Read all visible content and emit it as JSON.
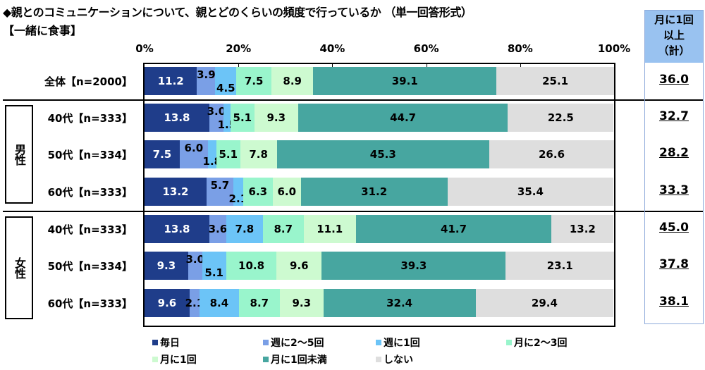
{
  "chart_data": {
    "type": "bar",
    "orientation": "horizontal",
    "stacked": true,
    "title": "◆親とのコミュニケーションについて、親とどのくらいの頻度で行っているか （単一回答形式）",
    "subtitle": "【一緒に食事】",
    "xlim": [
      0,
      100
    ],
    "x_ticks": [
      "0%",
      "20%",
      "40%",
      "60%",
      "80%",
      "100%"
    ],
    "categories": [
      "全体【n=2000】",
      "40代【n=333】",
      "50代【n=334】",
      "60代【n=333】",
      "40代【n=333】",
      "50代【n=334】",
      "60代【n=333】"
    ],
    "groups": [
      {
        "label": "",
        "rows": [
          0
        ]
      },
      {
        "label": "男性",
        "rows": [
          1,
          2,
          3
        ]
      },
      {
        "label": "女性",
        "rows": [
          4,
          5,
          6
        ]
      }
    ],
    "series": [
      {
        "name": "毎日",
        "color": "#1f3d8a",
        "values": [
          11.2,
          13.8,
          7.5,
          13.2,
          13.8,
          9.3,
          9.6
        ]
      },
      {
        "name": "週に2～5回",
        "color": "#7a9fe6",
        "values": [
          3.9,
          3.0,
          6.0,
          5.7,
          3.6,
          3.0,
          2.1
        ]
      },
      {
        "name": "週に1回",
        "color": "#6cc4f7",
        "values": [
          4.5,
          1.5,
          1.8,
          2.1,
          7.8,
          5.1,
          8.4
        ]
      },
      {
        "name": "月に2～3回",
        "color": "#99f5cc",
        "values": [
          7.5,
          5.1,
          5.1,
          6.3,
          8.7,
          10.8,
          8.7
        ]
      },
      {
        "name": "月に1回",
        "color": "#cdfad0",
        "values": [
          8.9,
          9.3,
          7.8,
          6.0,
          11.1,
          9.6,
          9.3
        ]
      },
      {
        "name": "月に1回未満",
        "color": "#47a6a0",
        "values": [
          39.1,
          44.7,
          45.3,
          31.2,
          41.7,
          39.3,
          32.4
        ]
      },
      {
        "name": "しない",
        "color": "#dedede",
        "values": [
          25.1,
          22.5,
          26.6,
          35.4,
          13.2,
          23.1,
          29.4
        ]
      }
    ],
    "label_offsets": [
      [
        null,
        "up",
        "down",
        null,
        null,
        null,
        null
      ],
      [
        null,
        "up",
        "down",
        null,
        null,
        null,
        null
      ],
      [
        null,
        "up",
        "down",
        null,
        null,
        null,
        null
      ],
      [
        null,
        "up",
        "down",
        null,
        null,
        null,
        null
      ],
      [
        null,
        null,
        null,
        null,
        null,
        null,
        null
      ],
      [
        null,
        "up",
        "down",
        null,
        null,
        null,
        null
      ],
      [
        null,
        null,
        null,
        null,
        null,
        null,
        null
      ]
    ],
    "total_column": {
      "header": [
        "月に1回",
        "以上",
        "（計）"
      ],
      "values": [
        "36.0",
        "32.7",
        "28.2",
        "33.3",
        "45.0",
        "37.8",
        "38.1"
      ]
    },
    "legend_position": "bottom"
  }
}
